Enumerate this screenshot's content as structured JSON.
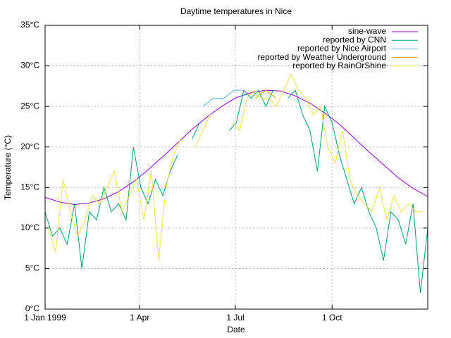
{
  "chart_data": {
    "type": "line",
    "title": "Daytime temperatures in Nice",
    "x_label": "Date",
    "y_label": "Temperature (°C)",
    "xlim": [
      0,
      364
    ],
    "ylim": [
      0,
      35
    ],
    "xticks": [
      {
        "value": 0,
        "label": "1 Jan 1999"
      },
      {
        "value": 90,
        "label": "1 Apr"
      },
      {
        "value": 181,
        "label": "1 Jul"
      },
      {
        "value": 273,
        "label": "1 Oct"
      }
    ],
    "yticks": [
      {
        "value": 0,
        "label": "0°C"
      },
      {
        "value": 5,
        "label": "5°C"
      },
      {
        "value": 10,
        "label": "10°C"
      },
      {
        "value": 15,
        "label": "15°C"
      },
      {
        "value": 20,
        "label": "20°C"
      },
      {
        "value": 25,
        "label": "25°C"
      },
      {
        "value": 30,
        "label": "30°C"
      },
      {
        "value": 35,
        "label": "35°C"
      }
    ],
    "grid": true,
    "legend": "top-right",
    "series": [
      {
        "name": "sine-wave",
        "color": "#9400d3",
        "x": [
          0,
          14,
          28,
          42,
          56,
          70,
          84,
          98,
          112,
          126,
          140,
          154,
          168,
          182,
          196,
          210,
          224,
          238,
          252,
          266,
          280,
          294,
          308,
          322,
          336,
          350,
          364
        ],
        "values": [
          13.8,
          13.2,
          12.9,
          13.1,
          13.6,
          14.5,
          15.7,
          17.2,
          18.8,
          20.5,
          22.2,
          23.7,
          25.0,
          26.1,
          26.7,
          27.0,
          26.9,
          26.3,
          25.4,
          24.2,
          22.8,
          21.1,
          19.4,
          17.8,
          16.2,
          14.9,
          13.9
        ]
      },
      {
        "name": "reported by CNN",
        "color": "#009e73",
        "x": [
          0,
          7,
          14,
          21,
          28,
          35,
          42,
          49,
          56,
          63,
          70,
          77,
          84,
          91,
          98,
          105,
          112,
          119,
          126,
          133,
          140,
          147,
          154,
          161,
          168,
          175,
          182,
          189,
          196,
          203,
          210,
          217,
          224,
          231,
          238,
          245,
          252,
          259,
          266,
          273,
          280,
          287,
          294,
          301,
          308,
          315,
          322,
          329,
          336,
          343,
          350,
          357,
          364
        ],
        "values": [
          12,
          9,
          10,
          8,
          13,
          5,
          12,
          11,
          15,
          12,
          13,
          11,
          20,
          15,
          13,
          16,
          14,
          17,
          19,
          null,
          21,
          23,
          null,
          25,
          null,
          22,
          23,
          27,
          26,
          27,
          25,
          27,
          null,
          26,
          27,
          24,
          22,
          17,
          25,
          23,
          19,
          16,
          13,
          15,
          12,
          10,
          6,
          12,
          11,
          8,
          13,
          2,
          10
        ]
      },
      {
        "name": "reported by Nice Airport",
        "color": "#56b4e9",
        "x": [
          150,
          160,
          170,
          180,
          190
        ],
        "values": [
          25,
          26,
          26,
          27,
          27
        ]
      },
      {
        "name": "reported by Weather Underground",
        "color": "#e69f00",
        "x": [
          200,
          210,
          220
        ],
        "values": [
          26,
          27,
          26
        ]
      },
      {
        "name": "reported by RainOrShine",
        "color": "#f0e442",
        "x": [
          3,
          10,
          17,
          24,
          31,
          38,
          45,
          52,
          59,
          66,
          73,
          80,
          87,
          94,
          101,
          108,
          115,
          122,
          129,
          136,
          143,
          150,
          157,
          164,
          171,
          178,
          185,
          192,
          199,
          206,
          213,
          220,
          227,
          234,
          241,
          248,
          255,
          262,
          269,
          276,
          283,
          290,
          297,
          304,
          311,
          318,
          325,
          332,
          339,
          346,
          353,
          360
        ],
        "values": [
          10,
          7,
          16,
          12,
          9,
          11,
          14,
          13,
          15,
          17,
          12,
          14,
          16,
          11,
          17,
          6,
          15,
          19,
          21,
          null,
          20,
          22,
          24,
          null,
          null,
          23,
          22,
          26,
          27,
          26,
          26,
          25,
          27,
          29,
          27,
          26,
          24,
          25,
          20,
          18,
          22,
          16,
          14,
          13,
          12,
          15,
          11,
          14,
          12,
          13,
          12,
          12
        ]
      }
    ]
  }
}
